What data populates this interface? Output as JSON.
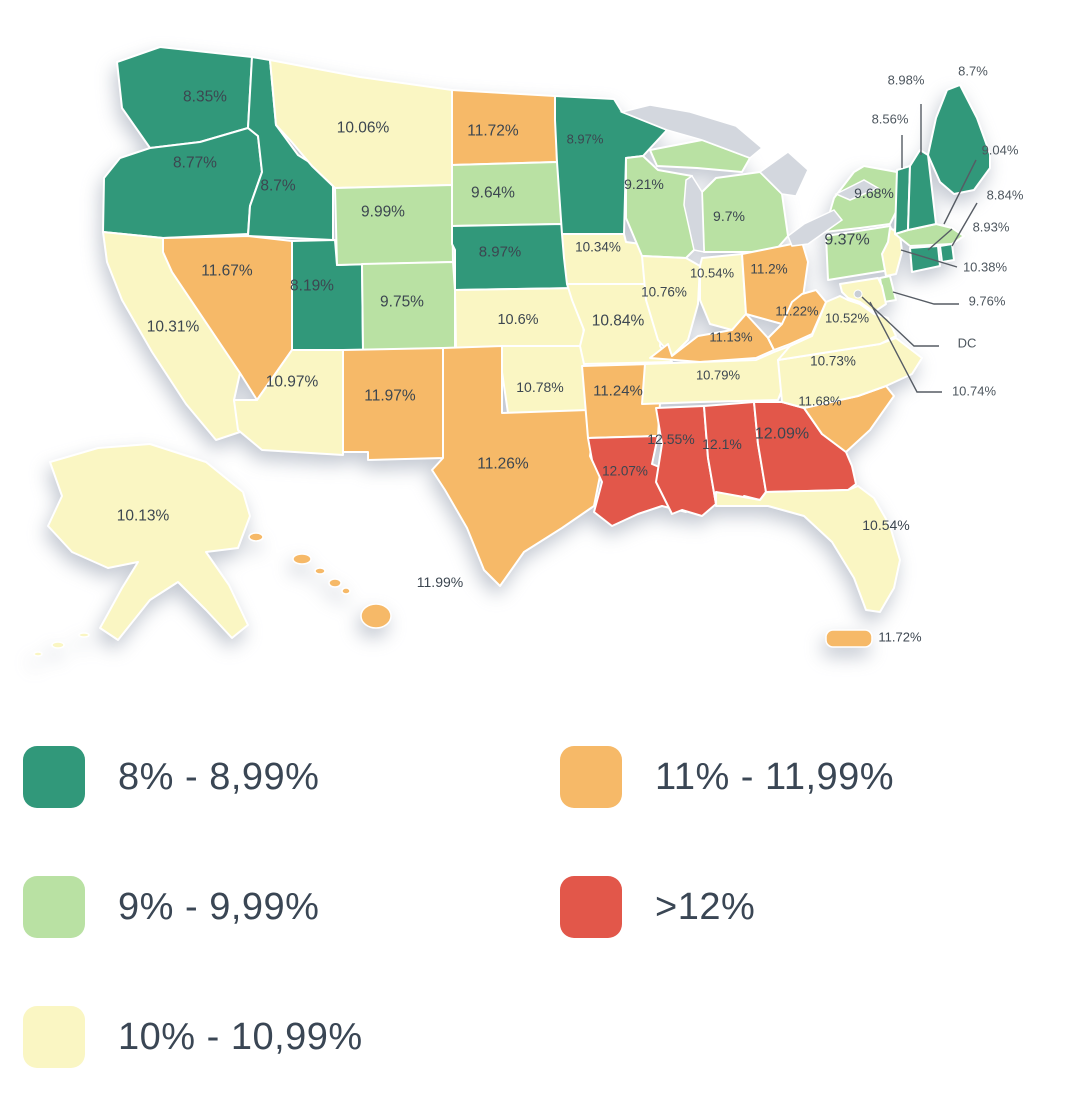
{
  "legend": {
    "items": [
      {
        "key": "g1",
        "label": "8% - 8,99%",
        "color": "#31987a"
      },
      {
        "key": "g2",
        "label": "9% - 9,99%",
        "color": "#b9e1a3"
      },
      {
        "key": "g3",
        "label": "10% - 10,99%",
        "color": "#faf6c3"
      },
      {
        "key": "g4",
        "label": "11% - 11,99%",
        "color": "#f6b968"
      },
      {
        "key": "g5",
        "label": ">12%",
        "color": "#e2574a"
      }
    ]
  },
  "chart_data": {
    "type": "choropleth-map",
    "region": "United States",
    "unit": "%",
    "legend_position": "bottom",
    "dc_label": "DC",
    "states": [
      {
        "id": "WA",
        "name": "Washington",
        "value": "8.35%",
        "range": "g1"
      },
      {
        "id": "OR",
        "name": "Oregon",
        "value": "8.77%",
        "range": "g1"
      },
      {
        "id": "CA",
        "name": "California",
        "value": "10.31%",
        "range": "g3"
      },
      {
        "id": "ID",
        "name": "Idaho",
        "value": "8.7%",
        "range": "g1"
      },
      {
        "id": "NV",
        "name": "Nevada",
        "value": "11.67%",
        "range": "g4"
      },
      {
        "id": "UT",
        "name": "Utah",
        "value": "8.19%",
        "range": "g1"
      },
      {
        "id": "AZ",
        "name": "Arizona",
        "value": "10.97%",
        "range": "g3"
      },
      {
        "id": "MT",
        "name": "Montana",
        "value": "10.06%",
        "range": "g3"
      },
      {
        "id": "WY",
        "name": "Wyoming",
        "value": "9.99%",
        "range": "g2"
      },
      {
        "id": "CO",
        "name": "Colorado",
        "value": "9.75%",
        "range": "g2"
      },
      {
        "id": "NM",
        "name": "New Mexico",
        "value": "11.97%",
        "range": "g4"
      },
      {
        "id": "ND",
        "name": "North Dakota",
        "value": "11.72%",
        "range": "g4"
      },
      {
        "id": "SD",
        "name": "South Dakota",
        "value": "9.64%",
        "range": "g2"
      },
      {
        "id": "NE",
        "name": "Nebraska",
        "value": "8.97%",
        "range": "g1"
      },
      {
        "id": "KS",
        "name": "Kansas",
        "value": "10.6%",
        "range": "g3"
      },
      {
        "id": "OK",
        "name": "Oklahoma",
        "value": "10.78%",
        "range": "g3"
      },
      {
        "id": "TX",
        "name": "Texas",
        "value": "11.26%",
        "range": "g4"
      },
      {
        "id": "MN",
        "name": "Minnesota",
        "value": "8.97%",
        "range": "g1"
      },
      {
        "id": "IA",
        "name": "Iowa",
        "value": "10.34%",
        "range": "g3"
      },
      {
        "id": "MO",
        "name": "Missouri",
        "value": "10.84%",
        "range": "g3"
      },
      {
        "id": "AR",
        "name": "Arkansas",
        "value": "11.24%",
        "range": "g4"
      },
      {
        "id": "LA",
        "name": "Louisiana",
        "value": "12.07%",
        "range": "g5"
      },
      {
        "id": "WI",
        "name": "Wisconsin",
        "value": "9.21%",
        "range": "g2"
      },
      {
        "id": "IL",
        "name": "Illinois",
        "value": "10.76%",
        "range": "g3"
      },
      {
        "id": "MI",
        "name": "Michigan",
        "value": "9.7%",
        "range": "g2"
      },
      {
        "id": "IN",
        "name": "Indiana",
        "value": "10.54%",
        "range": "g3"
      },
      {
        "id": "OH",
        "name": "Ohio",
        "value": "11.2%",
        "range": "g4"
      },
      {
        "id": "KY",
        "name": "Kentucky",
        "value": "11.13%",
        "range": "g4"
      },
      {
        "id": "TN",
        "name": "Tennessee",
        "value": "10.79%",
        "range": "g3"
      },
      {
        "id": "MS",
        "name": "Mississippi",
        "value": "12.55%",
        "range": "g5"
      },
      {
        "id": "AL",
        "name": "Alabama",
        "value": "12.1%",
        "range": "g5"
      },
      {
        "id": "GA",
        "name": "Georgia",
        "value": "12.09%",
        "range": "g5"
      },
      {
        "id": "FL",
        "name": "Florida",
        "value": "10.54%",
        "range": "g3"
      },
      {
        "id": "SC",
        "name": "South Carolina",
        "value": "11.68%",
        "range": "g4"
      },
      {
        "id": "NC",
        "name": "North Carolina",
        "value": "10.73%",
        "range": "g3"
      },
      {
        "id": "VA",
        "name": "Virginia",
        "value": "10.52%",
        "range": "g3"
      },
      {
        "id": "WV",
        "name": "West Virginia",
        "value": "11.22%",
        "range": "g4"
      },
      {
        "id": "PA",
        "name": "Pennsylvania",
        "value": "9.37%",
        "range": "g2"
      },
      {
        "id": "NY",
        "name": "New York",
        "value": "9.68%",
        "range": "g2"
      },
      {
        "id": "NJ",
        "name": "New Jersey",
        "value": "10.38%",
        "range": "g3"
      },
      {
        "id": "DE",
        "name": "Delaware",
        "value": "9.76%",
        "range": "g2"
      },
      {
        "id": "MD",
        "name": "Maryland",
        "value": "10.74%",
        "range": "g3"
      },
      {
        "id": "CT",
        "name": "Connecticut",
        "value": "8.93%",
        "range": "g1"
      },
      {
        "id": "RI",
        "name": "Rhode Island",
        "value": "8.84%",
        "range": "g1"
      },
      {
        "id": "MA",
        "name": "Massachusetts",
        "value": "9.04%",
        "range": "g2"
      },
      {
        "id": "VT",
        "name": "Vermont",
        "value": "8.56%",
        "range": "g1"
      },
      {
        "id": "NH",
        "name": "New Hampshire",
        "value": "8.98%",
        "range": "g1"
      },
      {
        "id": "ME",
        "name": "Maine",
        "value": "8.7%",
        "range": "g1"
      },
      {
        "id": "AK",
        "name": "Alaska",
        "value": "10.13%",
        "range": "g3"
      },
      {
        "id": "HI",
        "name": "Hawaii",
        "value": "11.99%",
        "range": "g4"
      },
      {
        "id": "PR",
        "name": "Puerto Rico",
        "value": "11.72%",
        "range": "g4"
      }
    ]
  }
}
